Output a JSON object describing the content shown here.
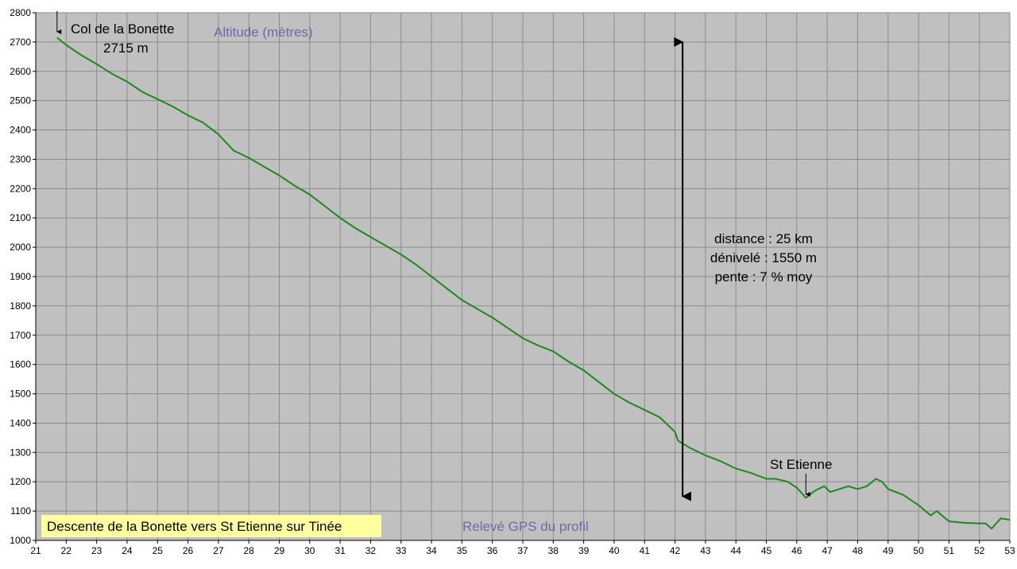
{
  "colors": {
    "plot_background": "#c0c0c0",
    "grid": "#8c8c8c",
    "series_line": "#1a8a1a",
    "caption_background": "#ffffa0",
    "blue_text": "#6a6aa8"
  },
  "chart_data": {
    "type": "line",
    "title": "",
    "xlabel": "",
    "ylabel": "Altitude (mètres)",
    "xlim": [
      21,
      53
    ],
    "ylim": [
      1000,
      2800
    ],
    "grid": true,
    "x_ticks": [
      "21",
      "22",
      "23",
      "24",
      "25",
      "26",
      "27",
      "28",
      "29",
      "30",
      "31",
      "32",
      "33",
      "34",
      "35",
      "36",
      "37",
      "38",
      "39",
      "40",
      "41",
      "42",
      "43",
      "44",
      "45",
      "46",
      "47",
      "48",
      "49",
      "50",
      "51",
      "52",
      "53"
    ],
    "y_ticks": [
      "1000",
      "1100",
      "1200",
      "1300",
      "1400",
      "1500",
      "1600",
      "1700",
      "1800",
      "1900",
      "2000",
      "2100",
      "2200",
      "2300",
      "2400",
      "2500",
      "2600",
      "2700",
      "2800"
    ],
    "series": [
      {
        "x": [
          21.7,
          22,
          22.5,
          23,
          23.5,
          24,
          24.5,
          25,
          25.5,
          26,
          26.5,
          27,
          27.5,
          28,
          28.5,
          29,
          29.5,
          30,
          30.5,
          31,
          31.5,
          32,
          32.5,
          33,
          33.5,
          34,
          34.5,
          35,
          35.5,
          36,
          36.5,
          37,
          37.5,
          38,
          38.5,
          39,
          39.5,
          40,
          40.5,
          41,
          41.5,
          42,
          42.1,
          42.5,
          43,
          43.5,
          44,
          44.5,
          45,
          45.3,
          45.7,
          46,
          46.3,
          46.6,
          46.9,
          47.1,
          47.4,
          47.7,
          48,
          48.3,
          48.6,
          48.8,
          49,
          49.5,
          50,
          50.4,
          50.6,
          51,
          51.5,
          52,
          52.2,
          52.4,
          52.7,
          53
        ],
        "y": [
          2715,
          2690,
          2655,
          2625,
          2592,
          2565,
          2530,
          2505,
          2480,
          2450,
          2425,
          2385,
          2330,
          2305,
          2275,
          2245,
          2210,
          2180,
          2140,
          2100,
          2065,
          2035,
          2005,
          1975,
          1940,
          1900,
          1860,
          1820,
          1790,
          1760,
          1725,
          1690,
          1665,
          1645,
          1610,
          1580,
          1540,
          1500,
          1470,
          1445,
          1420,
          1370,
          1340,
          1315,
          1290,
          1270,
          1245,
          1230,
          1210,
          1210,
          1200,
          1180,
          1145,
          1170,
          1185,
          1165,
          1175,
          1185,
          1175,
          1185,
          1210,
          1200,
          1175,
          1155,
          1120,
          1085,
          1100,
          1065,
          1060,
          1058,
          1058,
          1040,
          1075,
          1070
        ]
      }
    ],
    "annotations": {
      "summit_name": "Col de la Bonette",
      "summit_altitude": "2715 m",
      "stats_distance": "distance : 25 km",
      "stats_elevation": "dénivelé : 1550 m",
      "stats_slope": "pente : 7 % moy",
      "town_name": "St Etienne",
      "source_label": "Relevé GPS du profil",
      "caption": "Descente de la Bonette vers St Etienne sur Tinée"
    },
    "arrow_markers": {
      "summit_x": 21.7,
      "town_x": 46.3,
      "span_x": 42.25,
      "span_y": [
        1150,
        2700
      ]
    }
  }
}
